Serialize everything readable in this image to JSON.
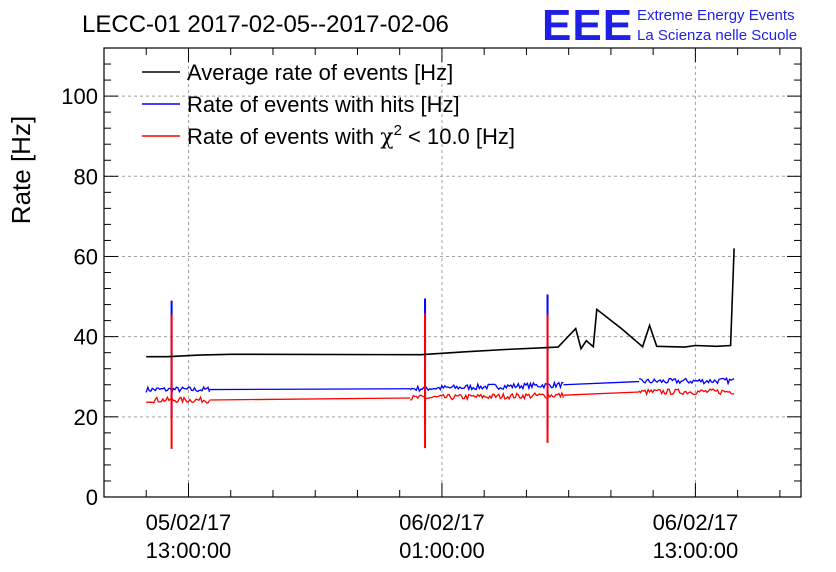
{
  "header": {
    "title": "LECC-01 2017-02-05--2017-02-06",
    "logo_text": "EEE",
    "logo_line1": "Extreme Energy Events",
    "logo_line2": "La Scienza nelle Scuole"
  },
  "colors": {
    "black": "#000000",
    "blue": "#0000ff",
    "red": "#ff0000",
    "logo": "#1f1fe6"
  },
  "chart_data": {
    "type": "line",
    "ylabel": "Rate [Hz]",
    "xlabel": "",
    "ylim": [
      0,
      112
    ],
    "xlim_hours_label": "timeline 2017-02-05 09:00 to 2017-02-06 17:00",
    "grid": true,
    "legend_position": "top-left",
    "y_ticks": [
      "0",
      "20",
      "40",
      "60",
      "80",
      "100"
    ],
    "x_ticks": [
      {
        "line1": "05/02/17",
        "line2": "13:00:00"
      },
      {
        "line1": "06/02/17",
        "line2": "01:00:00"
      },
      {
        "line1": "06/02/17",
        "line2": "13:00:00"
      }
    ],
    "legend": {
      "avg": "Average rate of events [Hz]",
      "hits": "Rate of events with hits [Hz]",
      "chi_prefix": "Rate of events with ",
      "chi_symbol": "χ",
      "chi_sup": "2",
      "chi_suffix": " < 10.0 [Hz]"
    },
    "series": [
      {
        "name": "Average rate of events [Hz]",
        "color": "#000000",
        "noise": 0,
        "points": [
          [
            "2017-02-05 11:00",
            35
          ],
          [
            "2017-02-05 12:00",
            35
          ],
          [
            "2017-02-05 13:30",
            35.4
          ],
          [
            "2017-02-05 15:00",
            35.6
          ],
          [
            "2017-02-06 00:00",
            35.5
          ],
          [
            "2017-02-06 02:00",
            36.2
          ],
          [
            "2017-02-06 04:00",
            36.8
          ],
          [
            "2017-02-06 06:30",
            37.4
          ],
          [
            "2017-02-06 07:20",
            42
          ],
          [
            "2017-02-06 07:35",
            37
          ],
          [
            "2017-02-06 07:50",
            39
          ],
          [
            "2017-02-06 08:10",
            37.5
          ],
          [
            "2017-02-06 08:20",
            46.8
          ],
          [
            "2017-02-06 09:30",
            42
          ],
          [
            "2017-02-06 10:30",
            37.5
          ],
          [
            "2017-02-06 10:50",
            42.8
          ],
          [
            "2017-02-06 11:10",
            37.6
          ],
          [
            "2017-02-06 12:30",
            37.4
          ],
          [
            "2017-02-06 13:00",
            37.8
          ],
          [
            "2017-02-06 14:00",
            37.6
          ],
          [
            "2017-02-06 14:40",
            37.8
          ],
          [
            "2017-02-06 14:50",
            62
          ]
        ]
      },
      {
        "name": "Rate of events with hits [Hz]",
        "color": "#0000ff",
        "noise": 0.7,
        "segments": [
          [
            [
              "2017-02-05 11:00",
              26.8
            ],
            [
              "2017-02-05 14:00",
              26.8
            ]
          ],
          [
            [
              "2017-02-05 23:30",
              27
            ],
            [
              "2017-02-06 06:45",
              28
            ]
          ],
          [
            [
              "2017-02-06 10:20",
              28.8
            ],
            [
              "2017-02-06 14:50",
              29
            ]
          ]
        ],
        "gaps": [
          [
            [
              "2017-02-05 14:00",
              26.8
            ],
            [
              "2017-02-05 23:30",
              27
            ]
          ],
          [
            [
              "2017-02-06 06:45",
              28
            ],
            [
              "2017-02-06 10:20",
              28.8
            ]
          ]
        ],
        "spikes": [
          {
            "t": "2017-02-05 12:12",
            "values": [
              49,
              20
            ]
          },
          {
            "t": "2017-02-06 00:12",
            "values": [
              49.5,
              18
            ]
          },
          {
            "t": "2017-02-06 06:00",
            "values": [
              50.5,
              17
            ]
          }
        ]
      },
      {
        "name": "Rate of events with χ2 < 10.0 [Hz]",
        "color": "#ff0000",
        "noise": 0.7,
        "segments": [
          [
            [
              "2017-02-05 11:00",
              24.2
            ],
            [
              "2017-02-05 14:00",
              24.2
            ]
          ],
          [
            [
              "2017-02-05 23:30",
              24.7
            ],
            [
              "2017-02-06 06:45",
              25.4
            ]
          ],
          [
            [
              "2017-02-06 10:20",
              26.2
            ],
            [
              "2017-02-06 14:50",
              26.3
            ]
          ]
        ],
        "gaps": [
          [
            [
              "2017-02-05 14:00",
              24.2
            ],
            [
              "2017-02-05 23:30",
              24.7
            ]
          ],
          [
            [
              "2017-02-06 06:45",
              25.4
            ],
            [
              "2017-02-06 10:20",
              26.2
            ]
          ]
        ],
        "spikes": [
          {
            "t": "2017-02-05 12:12",
            "values": [
              45.5,
              12
            ]
          },
          {
            "t": "2017-02-06 00:12",
            "values": [
              45.8,
              12.2
            ]
          },
          {
            "t": "2017-02-06 06:00",
            "values": [
              45.5,
              13.5
            ]
          }
        ]
      }
    ]
  }
}
